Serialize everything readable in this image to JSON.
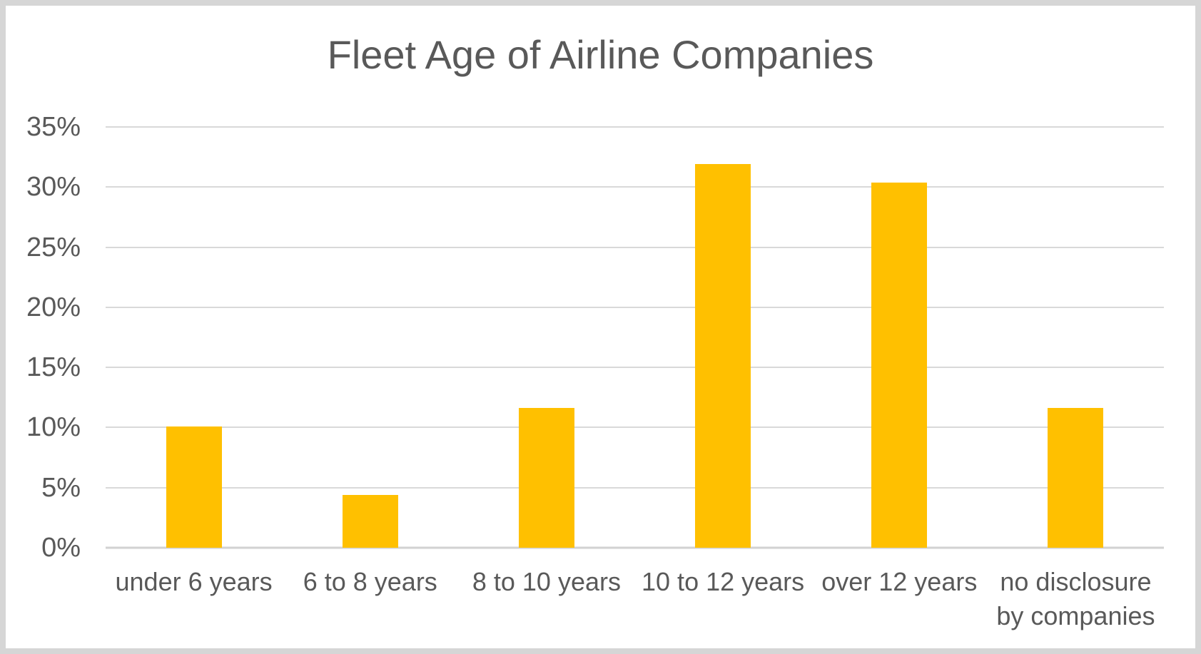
{
  "chart_data": {
    "type": "bar",
    "title": "Fleet Age of Airline Companies",
    "categories": [
      "under 6 years",
      "6 to 8 years",
      "8 to 10 years",
      "10 to 12 years",
      "over 12 years",
      "no disclosure by companies"
    ],
    "values": [
      10.1,
      4.4,
      11.6,
      31.9,
      30.4,
      11.6
    ],
    "value_unit": "%",
    "xlabel": "",
    "ylabel": "",
    "ylim": [
      0,
      35
    ],
    "ytick_step": 5,
    "yticks": [
      "35%",
      "30%",
      "25%",
      "20%",
      "15%",
      "10%",
      "5%",
      "0%"
    ],
    "grid": true,
    "legend_position": "none",
    "bar_color": "#FFC000"
  },
  "colors": {
    "bar": "#FFC000",
    "title_text": "#595959",
    "label_text": "#595959",
    "gridline": "#D9D9D9",
    "axis_line": "#D2D2D2",
    "frame_border": "#D6D6D6",
    "background": "#FFFFFF"
  }
}
